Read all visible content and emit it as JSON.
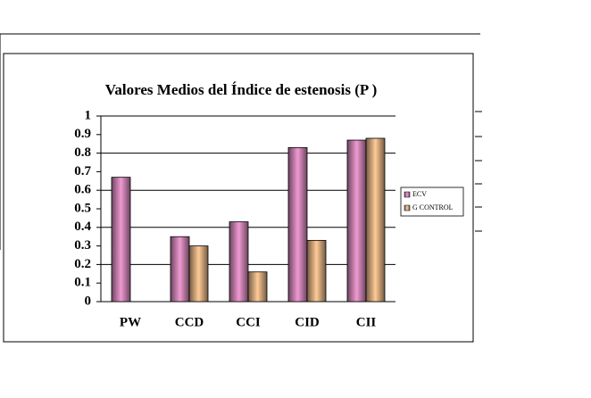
{
  "chart_data": {
    "type": "bar",
    "title": "Valores Medios del Índice de estenosis (P )",
    "categories": [
      "PW",
      "CCD",
      "CCI",
      "CID",
      "CII"
    ],
    "series": [
      {
        "name": "ECV",
        "color": "#f09ad2",
        "values": [
          0.67,
          0.35,
          0.43,
          0.83,
          0.87
        ]
      },
      {
        "name": "G CONTROL",
        "color": "#ffcb96",
        "values": [
          null,
          0.3,
          0.16,
          0.33,
          0.88
        ]
      }
    ],
    "ylim": [
      0,
      1
    ],
    "yticks": [
      0,
      0.1,
      0.2,
      0.3,
      0.4,
      0.5,
      0.6,
      0.7,
      0.8,
      0.9,
      1
    ],
    "grid": true,
    "legend": "right"
  }
}
